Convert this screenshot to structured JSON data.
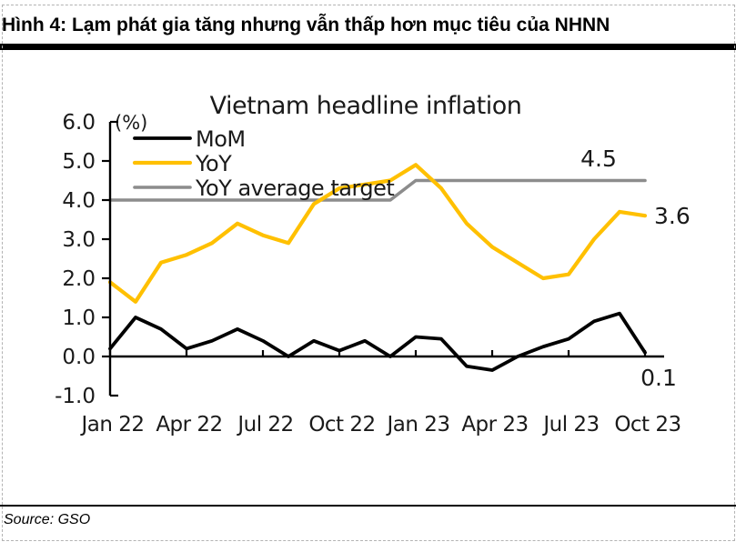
{
  "header": {
    "title": "Hình 4: Lạm phát gia tăng nhưng vẫn thấp hơn mục tiêu của NHNN"
  },
  "footer": {
    "source": "Source: GSO"
  },
  "chart_data": {
    "type": "line",
    "title": "Vietnam headline inflation",
    "unit_label": "(%)",
    "grid": false,
    "legend_position": "top-left-inside",
    "ylim": [
      -1.0,
      6.0
    ],
    "y_tick_labels": [
      "6.0",
      "5.0",
      "4.0",
      "3.0",
      "2.0",
      "1.0",
      "0.0",
      "-1.0"
    ],
    "x": [
      "Jan 22",
      "Feb 22",
      "Mar 22",
      "Apr 22",
      "May 22",
      "Jun 22",
      "Jul 22",
      "Aug 22",
      "Sep 22",
      "Oct 22",
      "Nov 22",
      "Dec 22",
      "Jan 23",
      "Feb 23",
      "Mar 23",
      "Apr 23",
      "May 23",
      "Jun 23",
      "Jul 23",
      "Aug 23",
      "Sep 23",
      "Oct 23"
    ],
    "x_tick_labels": [
      "Jan 22",
      "Apr 22",
      "Jul 22",
      "Oct 22",
      "Jan 23",
      "Apr 23",
      "Jul 23",
      "Oct 23"
    ],
    "series": [
      {
        "name": "MoM",
        "color": "#000000",
        "values": [
          0.2,
          1.0,
          0.7,
          0.2,
          0.4,
          0.7,
          0.4,
          0.0,
          0.4,
          0.15,
          0.4,
          0.0,
          0.5,
          0.45,
          -0.25,
          -0.35,
          0.0,
          0.25,
          0.45,
          0.9,
          1.1,
          0.1
        ]
      },
      {
        "name": "YoY",
        "color": "#FFC000",
        "values": [
          1.9,
          1.4,
          2.4,
          2.6,
          2.9,
          3.4,
          3.1,
          2.9,
          3.9,
          4.3,
          4.4,
          4.5,
          4.9,
          4.3,
          3.4,
          2.8,
          2.4,
          2.0,
          2.1,
          3.0,
          3.7,
          3.6
        ]
      },
      {
        "name": "YoY average target",
        "color": "#8C8C8C",
        "values": [
          4.0,
          4.0,
          4.0,
          4.0,
          4.0,
          4.0,
          4.0,
          4.0,
          4.0,
          4.0,
          4.0,
          4.0,
          4.5,
          4.5,
          4.5,
          4.5,
          4.5,
          4.5,
          4.5,
          4.5,
          4.5,
          4.5
        ]
      }
    ],
    "annotations": [
      {
        "id": "target-level",
        "text": "4.5"
      },
      {
        "id": "yoy-last",
        "text": "3.6"
      },
      {
        "id": "mom-last",
        "text": "0.1"
      }
    ]
  }
}
